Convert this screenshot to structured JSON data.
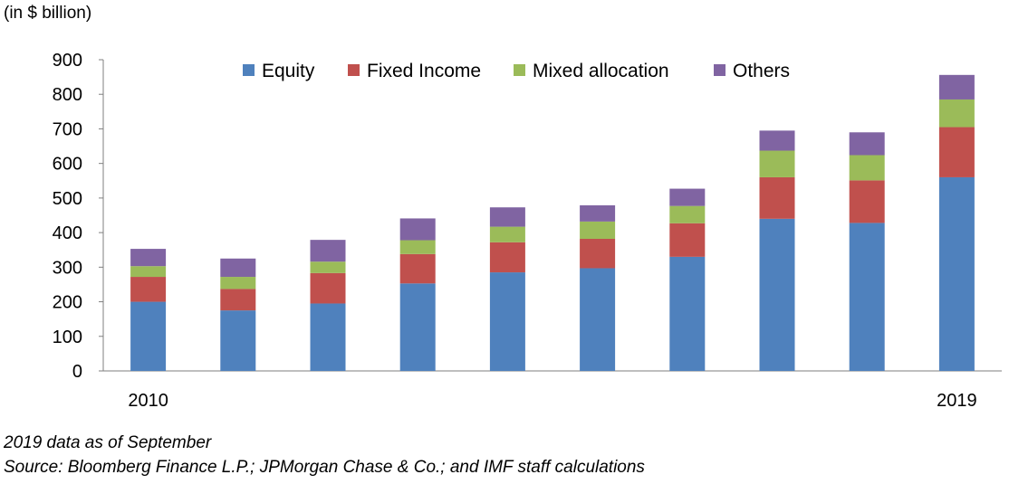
{
  "chart_data": {
    "type": "bar",
    "stacked": true,
    "unit_label": "(in $ billion)",
    "categories": [
      "2010",
      "",
      "",
      "",
      "",
      "",
      "",
      "",
      "",
      "2019"
    ],
    "series": [
      {
        "name": "Equity",
        "color": "#4F81BD",
        "values": [
          200,
          175,
          195,
          253,
          285,
          297,
          330,
          440,
          428,
          560
        ]
      },
      {
        "name": "Fixed Income",
        "color": "#C0504D",
        "values": [
          72,
          62,
          88,
          85,
          87,
          85,
          97,
          120,
          123,
          145
        ]
      },
      {
        "name": "Mixed allocation",
        "color": "#9BBB59",
        "values": [
          31,
          35,
          33,
          40,
          45,
          50,
          50,
          77,
          73,
          80
        ]
      },
      {
        "name": "Others",
        "color": "#8064A2",
        "values": [
          50,
          53,
          63,
          63,
          56,
          47,
          50,
          58,
          66,
          71
        ]
      }
    ],
    "ylim": [
      0,
      900
    ],
    "yticks": [
      0,
      100,
      200,
      300,
      400,
      500,
      600,
      700,
      800,
      900
    ],
    "grid": false,
    "legend_position": "top-center"
  },
  "footnotes": {
    "note": "2019 data as of September",
    "source": "Source: Bloomberg Finance L.P.; JPMorgan Chase & Co.; and IMF staff calculations"
  }
}
